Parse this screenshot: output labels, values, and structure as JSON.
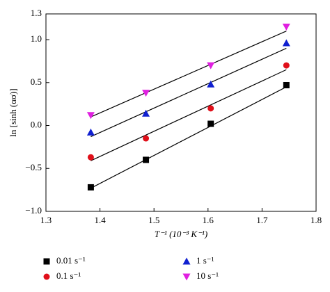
{
  "chart_data": {
    "type": "scatter",
    "x_label": "T⁻¹ (10⁻³ K⁻¹)",
    "y_label": "ln [sinh (ασ)]",
    "x": [
      1.383,
      1.485,
      1.605,
      1.745
    ],
    "series": [
      {
        "name": "0.01 s⁻¹",
        "color": "#000000",
        "marker": "square",
        "values": [
          -0.72,
          -0.4,
          0.02,
          0.47
        ],
        "fit": {
          "x": [
            1.383,
            1.745
          ],
          "values": [
            -0.73,
            0.45
          ]
        }
      },
      {
        "name": "0.1 s⁻¹",
        "color": "#e0101a",
        "marker": "circle",
        "values": [
          -0.37,
          -0.15,
          0.2,
          0.7
        ],
        "fit": {
          "x": [
            1.383,
            1.745
          ],
          "values": [
            -0.41,
            0.65
          ]
        }
      },
      {
        "name": "1 s⁻¹",
        "color": "#1020d0",
        "marker": "triangle-up",
        "values": [
          -0.08,
          0.14,
          0.48,
          0.96
        ],
        "fit": {
          "x": [
            1.383,
            1.745
          ],
          "values": [
            -0.13,
            0.9
          ]
        }
      },
      {
        "name": "10 s⁻¹",
        "color": "#e020e0",
        "marker": "triangle-down",
        "values": [
          0.12,
          0.38,
          0.7,
          1.15
        ],
        "fit": {
          "x": [
            1.383,
            1.745
          ],
          "values": [
            0.1,
            1.1
          ]
        }
      }
    ],
    "xlim": [
      1.3,
      1.8
    ],
    "xticks": [
      1.3,
      1.4,
      1.5,
      1.6,
      1.7,
      1.8
    ],
    "ylim": [
      -1.0,
      1.3
    ],
    "yticks": [
      {
        "value": -1,
        "label": "−1.0"
      },
      {
        "value": -0.5,
        "label": "−0.5"
      },
      {
        "value": 0,
        "label": "0.0"
      },
      0.5,
      {
        "value": 1,
        "label": "1.0"
      },
      1.3
    ],
    "grid": false
  }
}
